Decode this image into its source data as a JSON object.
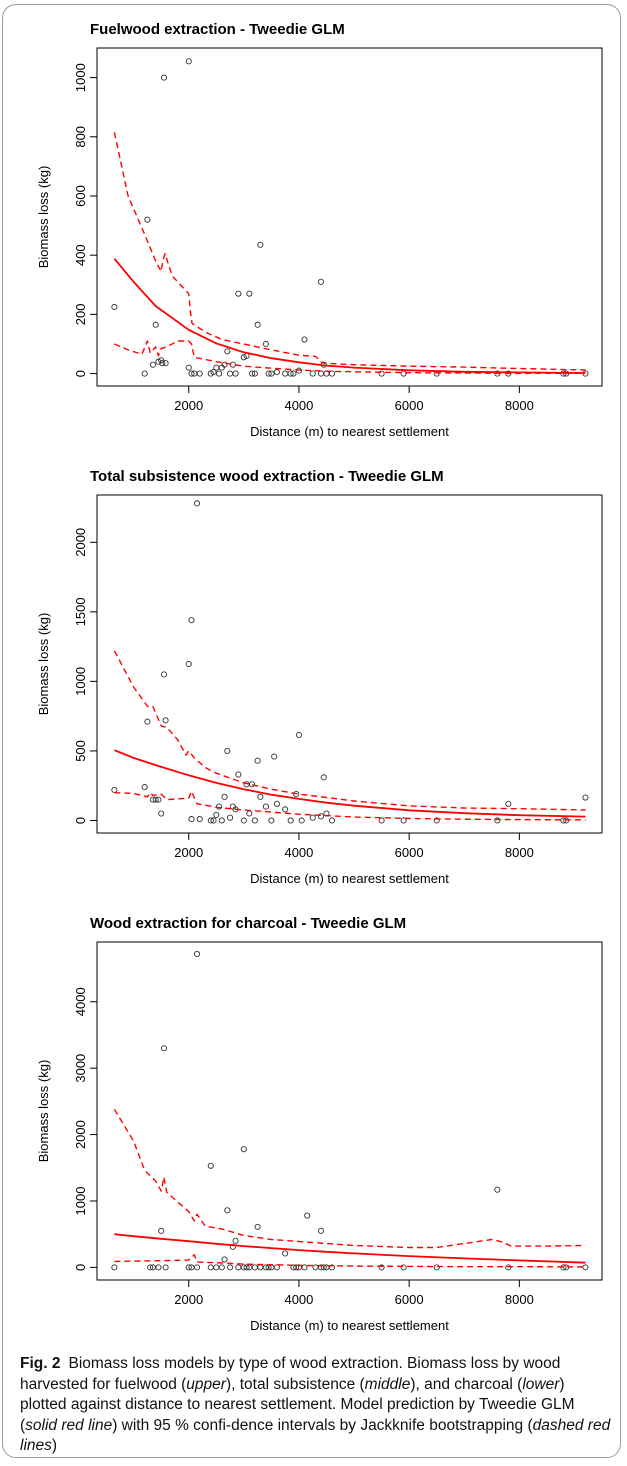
{
  "figure": {
    "label": "Fig. 2",
    "caption_parts": [
      {
        "text": "Biomass loss models by type of wood extraction. Biomass loss by wood harvested for fuelwood (",
        "italic": false
      },
      {
        "text": "upper",
        "italic": true
      },
      {
        "text": "), total subsistence (",
        "italic": false
      },
      {
        "text": "middle",
        "italic": true
      },
      {
        "text": "), and charcoal (",
        "italic": false
      },
      {
        "text": "lower",
        "italic": true
      },
      {
        "text": ") plotted against distance to nearest settlement. Model prediction by Tweedie GLM (",
        "italic": false
      },
      {
        "text": "solid red line",
        "italic": true
      },
      {
        "text": ") with 95 % confi-dence intervals by Jackknife bootstrapping (",
        "italic": false
      },
      {
        "text": "dashed red lines",
        "italic": true
      },
      {
        "text": ")",
        "italic": false
      }
    ]
  },
  "colors": {
    "fit": "#ff0000",
    "points": "#333333",
    "axis": "#000000"
  },
  "chart_data": [
    {
      "type": "scatter",
      "title": "Fuelwood extraction - Tweedie GLM",
      "xlabel": "Distance (m) to nearest settlement",
      "ylabel": "Biomass loss (kg)",
      "xlim": [
        335,
        9500
      ],
      "ylim": [
        -42,
        1100
      ],
      "xticks": [
        2000,
        4000,
        6000,
        8000
      ],
      "yticks": [
        0,
        200,
        400,
        600,
        800,
        1000
      ],
      "points": {
        "x": [
          650,
          1200,
          1250,
          1350,
          1400,
          1450,
          1500,
          1520,
          1550,
          1580,
          2000,
          2000,
          2050,
          2100,
          2200,
          2400,
          2450,
          2500,
          2550,
          2600,
          2650,
          2700,
          2750,
          2800,
          2850,
          2900,
          3000,
          3050,
          3100,
          3150,
          3200,
          3250,
          3300,
          3400,
          3450,
          3500,
          3600,
          3750,
          3850,
          3900,
          4000,
          4100,
          4250,
          4400,
          4400,
          4450,
          4500,
          4600,
          5500,
          5900,
          6500,
          7600,
          7800,
          8800,
          8850,
          9200
        ],
        "y": [
          225,
          0,
          520,
          30,
          165,
          40,
          45,
          35,
          1000,
          35,
          1055,
          20,
          0,
          0,
          0,
          0,
          5,
          20,
          0,
          20,
          30,
          75,
          0,
          30,
          0,
          270,
          55,
          60,
          270,
          0,
          0,
          165,
          435,
          100,
          0,
          0,
          5,
          0,
          0,
          0,
          10,
          115,
          0,
          0,
          310,
          30,
          0,
          0,
          0,
          0,
          0,
          0,
          0,
          0,
          0,
          0
        ]
      },
      "series": [
        {
          "name": "",
          "style": "solid",
          "x": [
            650,
            1000,
            1400,
            2000,
            2500,
            3000,
            3500,
            4000,
            4500,
            5000,
            6000,
            7000,
            8000,
            9200
          ],
          "y": [
            388,
            310,
            228,
            148,
            102,
            72,
            52,
            38,
            27,
            20,
            11,
            6,
            4,
            2
          ]
        },
        {
          "name": "",
          "style": "dashed",
          "x": [
            650,
            900,
            1200,
            1400,
            1500,
            1530,
            1570,
            1700,
            2000,
            2030,
            2060,
            2300,
            2600,
            3000,
            3500,
            4000,
            4300,
            4400,
            4450,
            5000,
            6000,
            7000,
            8000,
            9200
          ],
          "y": [
            815,
            600,
            470,
            380,
            345,
            380,
            405,
            330,
            270,
            210,
            170,
            140,
            115,
            100,
            80,
            62,
            58,
            40,
            35,
            30,
            25,
            22,
            17,
            12
          ]
        },
        {
          "name": "",
          "style": "dashed",
          "x": [
            650,
            900,
            1150,
            1250,
            1300,
            1400,
            1450,
            1500,
            1600,
            1800,
            2000,
            2050,
            2100,
            2500,
            3000,
            3500,
            4000,
            4500,
            5000,
            6000,
            7000,
            8000,
            9200
          ],
          "y": [
            100,
            80,
            65,
            110,
            70,
            90,
            60,
            85,
            90,
            110,
            110,
            100,
            55,
            40,
            25,
            18,
            12,
            8,
            6,
            3,
            2,
            1,
            1
          ]
        }
      ]
    },
    {
      "type": "scatter",
      "title": "Total subsistence wood extraction - Tweedie GLM",
      "xlabel": "Distance (m) to nearest settlement",
      "ylabel": "Biomass loss (kg)",
      "xlim": [
        335,
        9500
      ],
      "ylim": [
        -90,
        2340
      ],
      "xticks": [
        2000,
        4000,
        6000,
        8000
      ],
      "yticks": [
        0,
        500,
        1000,
        1500,
        2000
      ],
      "points": {
        "x": [
          650,
          1200,
          1250,
          1350,
          1400,
          1450,
          1500,
          1550,
          1580,
          2000,
          2050,
          2050,
          2150,
          2200,
          2400,
          2450,
          2500,
          2550,
          2600,
          2650,
          2700,
          2750,
          2800,
          2850,
          2900,
          3000,
          3050,
          3100,
          3150,
          3200,
          3250,
          3300,
          3400,
          3500,
          3550,
          3600,
          3750,
          3850,
          3950,
          4000,
          4050,
          4250,
          4400,
          4450,
          4500,
          4600,
          5500,
          5900,
          6500,
          7600,
          7800,
          8800,
          8850,
          9200
        ],
        "y": [
          220,
          240,
          710,
          150,
          150,
          150,
          50,
          1050,
          720,
          1125,
          1440,
          10,
          2280,
          10,
          0,
          0,
          40,
          100,
          0,
          170,
          500,
          20,
          100,
          80,
          330,
          0,
          260,
          50,
          260,
          0,
          430,
          170,
          100,
          0,
          460,
          120,
          80,
          0,
          190,
          615,
          0,
          20,
          30,
          310,
          50,
          0,
          0,
          0,
          0,
          0,
          120,
          0,
          0,
          165
        ]
      },
      "series": [
        {
          "name": "",
          "style": "solid",
          "x": [
            650,
            1000,
            1500,
            2000,
            2500,
            3000,
            3500,
            4000,
            4500,
            5000,
            6000,
            7000,
            8000,
            9200
          ],
          "y": [
            505,
            450,
            385,
            325,
            270,
            225,
            185,
            155,
            128,
            106,
            73,
            52,
            38,
            28
          ]
        },
        {
          "name": "",
          "style": "dashed",
          "x": [
            650,
            1000,
            1250,
            1350,
            1500,
            1600,
            1800,
            1950,
            2000,
            2100,
            2300,
            2500,
            3000,
            3500,
            4000,
            4500,
            5000,
            6000,
            7000,
            8000,
            9200
          ],
          "y": [
            1220,
            960,
            820,
            820,
            680,
            670,
            580,
            470,
            500,
            450,
            380,
            340,
            270,
            225,
            190,
            165,
            140,
            105,
            90,
            85,
            75
          ]
        },
        {
          "name": "",
          "style": "dashed",
          "x": [
            650,
            1000,
            1250,
            1300,
            1350,
            1500,
            1600,
            2000,
            2050,
            2150,
            2300,
            2500,
            3000,
            3500,
            4000,
            4500,
            5000,
            6000,
            7000,
            8000,
            9200
          ],
          "y": [
            200,
            195,
            170,
            200,
            180,
            190,
            150,
            160,
            210,
            120,
            110,
            95,
            75,
            60,
            45,
            35,
            25,
            14,
            9,
            6,
            4
          ]
        }
      ]
    },
    {
      "type": "scatter",
      "title": "Wood extraction for charcoal - Tweedie GLM",
      "xlabel": "Distance (m) to nearest settlement",
      "ylabel": "Biomass loss (kg)",
      "xlim": [
        335,
        9500
      ],
      "ylim": [
        -190,
        4900
      ],
      "xticks": [
        2000,
        4000,
        6000,
        8000
      ],
      "yticks": [
        0,
        1000,
        2000,
        3000,
        4000
      ],
      "points": {
        "x": [
          650,
          1300,
          1350,
          1450,
          1500,
          1550,
          1580,
          2000,
          2050,
          2150,
          2150,
          2400,
          2400,
          2500,
          2600,
          2650,
          2700,
          2750,
          2800,
          2850,
          2900,
          3000,
          3000,
          3050,
          3100,
          3200,
          3250,
          3300,
          3400,
          3450,
          3500,
          3600,
          3750,
          3900,
          3950,
          4000,
          4100,
          4150,
          4300,
          4400,
          4400,
          4450,
          4500,
          4600,
          5500,
          5900,
          6500,
          7600,
          7800,
          8800,
          8850,
          9200
        ],
        "y": [
          0,
          0,
          0,
          0,
          550,
          3300,
          0,
          0,
          0,
          4720,
          0,
          0,
          1530,
          0,
          0,
          120,
          860,
          0,
          310,
          400,
          0,
          0,
          1780,
          0,
          0,
          0,
          610,
          0,
          0,
          0,
          0,
          0,
          210,
          0,
          0,
          0,
          0,
          780,
          0,
          0,
          550,
          0,
          0,
          0,
          0,
          0,
          0,
          1170,
          0,
          0,
          0,
          0
        ]
      },
      "series": [
        {
          "name": "",
          "style": "solid",
          "x": [
            650,
            1000,
            1500,
            2000,
            2500,
            3000,
            3500,
            4000,
            4500,
            5000,
            6000,
            7000,
            8000,
            9200
          ],
          "y": [
            500,
            470,
            430,
            395,
            355,
            320,
            290,
            260,
            235,
            210,
            170,
            135,
            105,
            70
          ]
        },
        {
          "name": "",
          "style": "dashed",
          "x": [
            650,
            1000,
            1200,
            1400,
            1500,
            1550,
            1600,
            2000,
            2100,
            2150,
            2300,
            2600,
            3000,
            3500,
            4000,
            4500,
            5000,
            6000,
            6500,
            7000,
            7500,
            7700,
            7850,
            8500,
            9200
          ],
          "y": [
            2380,
            1900,
            1460,
            1300,
            1150,
            1360,
            1130,
            840,
            700,
            800,
            620,
            580,
            480,
            420,
            390,
            360,
            330,
            300,
            300,
            360,
            420,
            380,
            320,
            320,
            330
          ]
        },
        {
          "name": "",
          "style": "dashed",
          "x": [
            650,
            1500,
            2000,
            2100,
            2150,
            2500,
            3000,
            3500,
            4000,
            4500,
            5000,
            6000,
            7000,
            8000,
            9200
          ],
          "y": [
            90,
            100,
            110,
            190,
            80,
            70,
            50,
            40,
            30,
            25,
            20,
            15,
            10,
            10,
            8
          ]
        }
      ]
    }
  ]
}
